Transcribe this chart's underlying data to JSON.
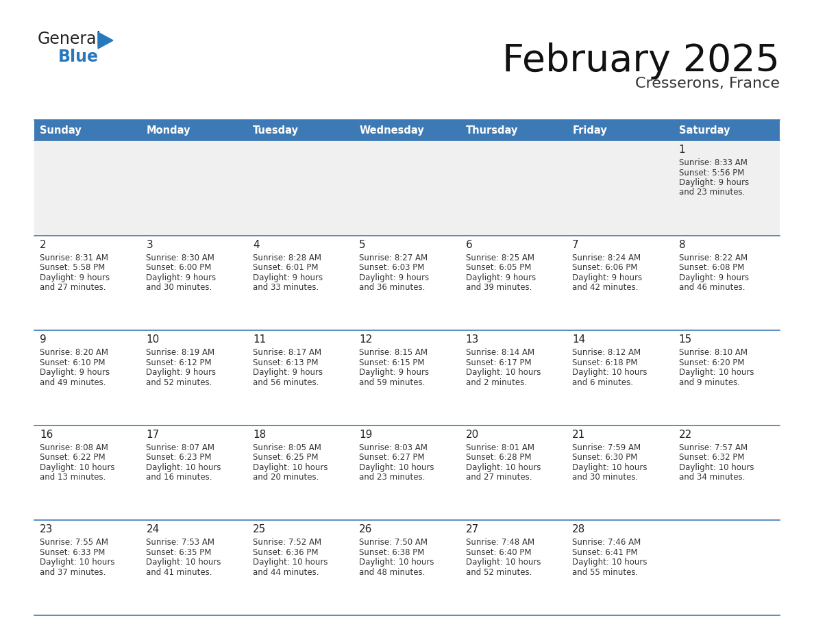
{
  "title": "February 2025",
  "subtitle": "Cresserons, France",
  "header_color": "#3d7ab5",
  "header_text_color": "#FFFFFF",
  "days_of_week": [
    "Sunday",
    "Monday",
    "Tuesday",
    "Wednesday",
    "Thursday",
    "Friday",
    "Saturday"
  ],
  "background_color": "#FFFFFF",
  "cell_alt_color": "#f0f0f0",
  "border_color": "#3d7ab5",
  "day_num_color": "#222222",
  "info_text_color": "#333333",
  "calendar_data": [
    [
      null,
      null,
      null,
      null,
      null,
      null,
      {
        "day": "1",
        "sunrise": "8:33 AM",
        "sunset": "5:56 PM",
        "daylight_hours": "9",
        "daylight_minutes": "23"
      }
    ],
    [
      {
        "day": "2",
        "sunrise": "8:31 AM",
        "sunset": "5:58 PM",
        "daylight_hours": "9",
        "daylight_minutes": "27"
      },
      {
        "day": "3",
        "sunrise": "8:30 AM",
        "sunset": "6:00 PM",
        "daylight_hours": "9",
        "daylight_minutes": "30"
      },
      {
        "day": "4",
        "sunrise": "8:28 AM",
        "sunset": "6:01 PM",
        "daylight_hours": "9",
        "daylight_minutes": "33"
      },
      {
        "day": "5",
        "sunrise": "8:27 AM",
        "sunset": "6:03 PM",
        "daylight_hours": "9",
        "daylight_minutes": "36"
      },
      {
        "day": "6",
        "sunrise": "8:25 AM",
        "sunset": "6:05 PM",
        "daylight_hours": "9",
        "daylight_minutes": "39"
      },
      {
        "day": "7",
        "sunrise": "8:24 AM",
        "sunset": "6:06 PM",
        "daylight_hours": "9",
        "daylight_minutes": "42"
      },
      {
        "day": "8",
        "sunrise": "8:22 AM",
        "sunset": "6:08 PM",
        "daylight_hours": "9",
        "daylight_minutes": "46"
      }
    ],
    [
      {
        "day": "9",
        "sunrise": "8:20 AM",
        "sunset": "6:10 PM",
        "daylight_hours": "9",
        "daylight_minutes": "49"
      },
      {
        "day": "10",
        "sunrise": "8:19 AM",
        "sunset": "6:12 PM",
        "daylight_hours": "9",
        "daylight_minutes": "52"
      },
      {
        "day": "11",
        "sunrise": "8:17 AM",
        "sunset": "6:13 PM",
        "daylight_hours": "9",
        "daylight_minutes": "56"
      },
      {
        "day": "12",
        "sunrise": "8:15 AM",
        "sunset": "6:15 PM",
        "daylight_hours": "9",
        "daylight_minutes": "59"
      },
      {
        "day": "13",
        "sunrise": "8:14 AM",
        "sunset": "6:17 PM",
        "daylight_hours": "10",
        "daylight_minutes": "2"
      },
      {
        "day": "14",
        "sunrise": "8:12 AM",
        "sunset": "6:18 PM",
        "daylight_hours": "10",
        "daylight_minutes": "6"
      },
      {
        "day": "15",
        "sunrise": "8:10 AM",
        "sunset": "6:20 PM",
        "daylight_hours": "10",
        "daylight_minutes": "9"
      }
    ],
    [
      {
        "day": "16",
        "sunrise": "8:08 AM",
        "sunset": "6:22 PM",
        "daylight_hours": "10",
        "daylight_minutes": "13"
      },
      {
        "day": "17",
        "sunrise": "8:07 AM",
        "sunset": "6:23 PM",
        "daylight_hours": "10",
        "daylight_minutes": "16"
      },
      {
        "day": "18",
        "sunrise": "8:05 AM",
        "sunset": "6:25 PM",
        "daylight_hours": "10",
        "daylight_minutes": "20"
      },
      {
        "day": "19",
        "sunrise": "8:03 AM",
        "sunset": "6:27 PM",
        "daylight_hours": "10",
        "daylight_minutes": "23"
      },
      {
        "day": "20",
        "sunrise": "8:01 AM",
        "sunset": "6:28 PM",
        "daylight_hours": "10",
        "daylight_minutes": "27"
      },
      {
        "day": "21",
        "sunrise": "7:59 AM",
        "sunset": "6:30 PM",
        "daylight_hours": "10",
        "daylight_minutes": "30"
      },
      {
        "day": "22",
        "sunrise": "7:57 AM",
        "sunset": "6:32 PM",
        "daylight_hours": "10",
        "daylight_minutes": "34"
      }
    ],
    [
      {
        "day": "23",
        "sunrise": "7:55 AM",
        "sunset": "6:33 PM",
        "daylight_hours": "10",
        "daylight_minutes": "37"
      },
      {
        "day": "24",
        "sunrise": "7:53 AM",
        "sunset": "6:35 PM",
        "daylight_hours": "10",
        "daylight_minutes": "41"
      },
      {
        "day": "25",
        "sunrise": "7:52 AM",
        "sunset": "6:36 PM",
        "daylight_hours": "10",
        "daylight_minutes": "44"
      },
      {
        "day": "26",
        "sunrise": "7:50 AM",
        "sunset": "6:38 PM",
        "daylight_hours": "10",
        "daylight_minutes": "48"
      },
      {
        "day": "27",
        "sunrise": "7:48 AM",
        "sunset": "6:40 PM",
        "daylight_hours": "10",
        "daylight_minutes": "52"
      },
      {
        "day": "28",
        "sunrise": "7:46 AM",
        "sunset": "6:41 PM",
        "daylight_hours": "10",
        "daylight_minutes": "55"
      },
      null
    ]
  ],
  "logo_color_general": "#222222",
  "logo_color_blue": "#2878be",
  "logo_triangle_color": "#2878be"
}
